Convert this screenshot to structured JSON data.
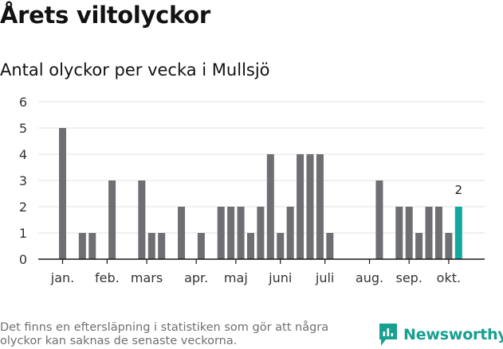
{
  "header": {
    "title": "Årets viltolyckor",
    "subtitle": "Antal olyckor per vecka i Mullsjö"
  },
  "footer": {
    "note": "Det finns en eftersläpning i statistiken som gör att några olyckor kan saknas de senaste veckorna.",
    "brand": "Newsworthy"
  },
  "colors": {
    "bar": "#6e6e73",
    "highlight": "#13a89e",
    "grid": "#e3e3e3",
    "axis": "#1a1a1a",
    "brand": "#16a08f"
  },
  "chart_data": {
    "type": "bar",
    "title": "Antal olyckor per vecka i Mullsjö",
    "xlabel": "",
    "ylabel": "",
    "ylim": [
      0,
      6
    ],
    "yticks": [
      0,
      1,
      2,
      3,
      4,
      5,
      6
    ],
    "grid": true,
    "weeks": [
      1,
      2,
      3,
      4,
      5,
      6,
      7,
      8,
      9,
      10,
      11,
      12,
      13,
      14,
      15,
      16,
      17,
      18,
      19,
      20,
      21,
      22,
      23,
      24,
      25,
      26,
      27,
      28,
      29,
      30,
      31,
      32,
      33,
      34,
      35,
      36,
      37,
      38,
      39,
      40,
      41
    ],
    "values": [
      5,
      0,
      1,
      1,
      0,
      3,
      0,
      0,
      3,
      1,
      1,
      0,
      2,
      0,
      1,
      0,
      2,
      2,
      2,
      1,
      2,
      4,
      1,
      2,
      4,
      4,
      4,
      1,
      0,
      0,
      0,
      0,
      3,
      0,
      2,
      2,
      1,
      2,
      2,
      1,
      2
    ],
    "highlight_week": 41,
    "highlight_label": "2",
    "month_labels": [
      {
        "label": "jan.",
        "week": 1
      },
      {
        "label": "feb.",
        "week": 5.5
      },
      {
        "label": "mars",
        "week": 9.5
      },
      {
        "label": "apr.",
        "week": 14.5
      },
      {
        "label": "maj",
        "week": 18.5
      },
      {
        "label": "juni",
        "week": 23
      },
      {
        "label": "juli",
        "week": 27.5
      },
      {
        "label": "aug.",
        "week": 32
      },
      {
        "label": "sep.",
        "week": 36
      },
      {
        "label": "okt.",
        "week": 40
      }
    ],
    "month_ticks": [
      1,
      5.5,
      9.5,
      14.5,
      18.5,
      23,
      27.5,
      32,
      36,
      40
    ]
  }
}
